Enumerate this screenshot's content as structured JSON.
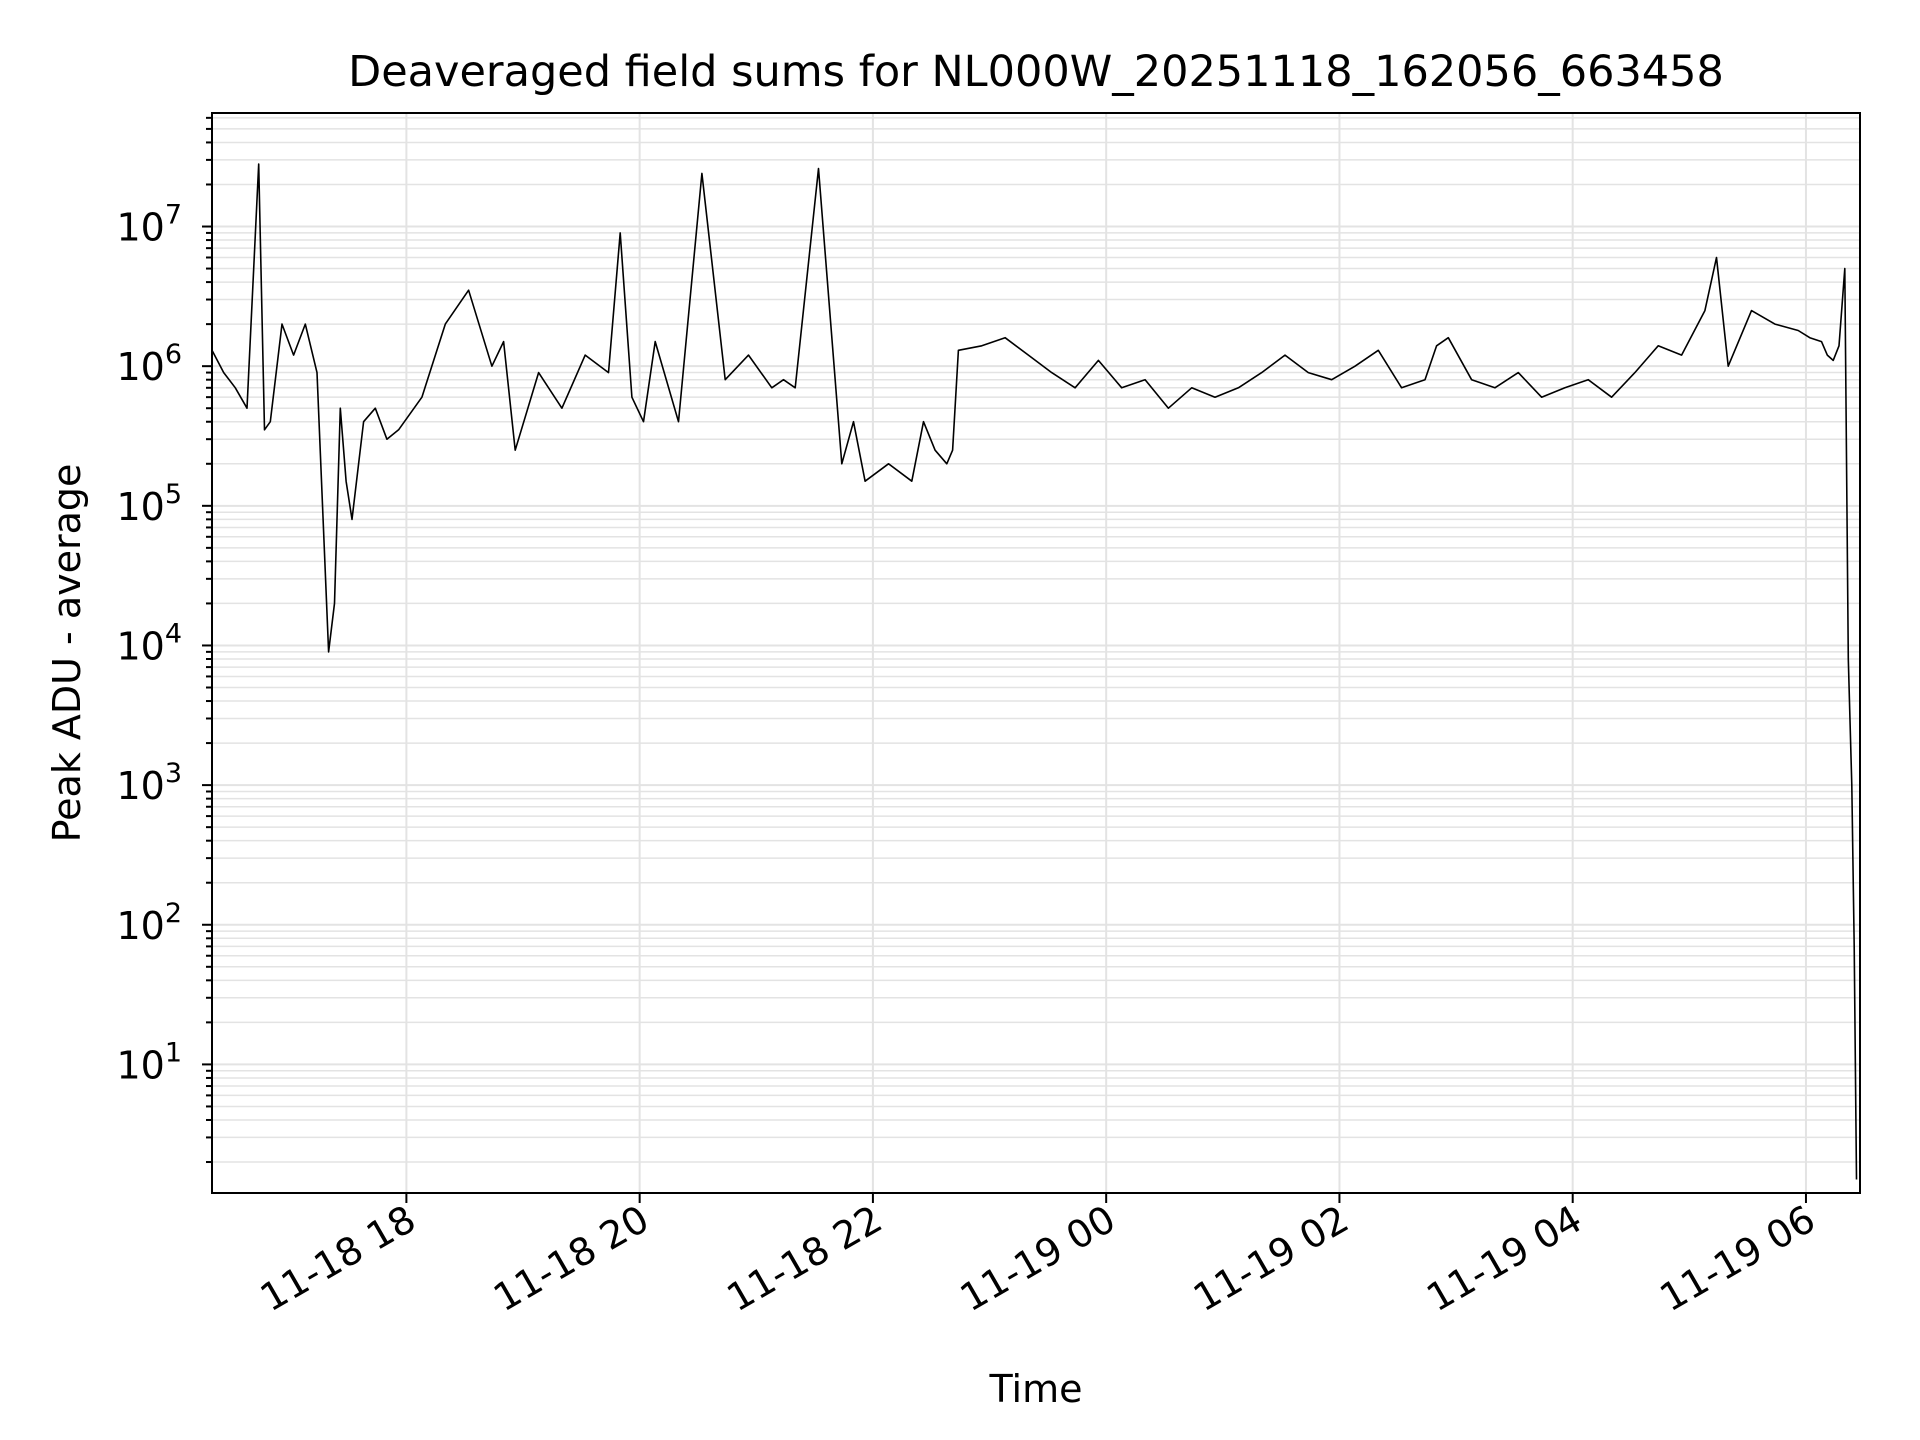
{
  "chart_data": {
    "type": "line",
    "title": "Deaveraged field sums for NL000W_20251118_162056_663458",
    "xlabel": "Time",
    "ylabel": "Peak ADU - average",
    "yscale": "log",
    "x_unit": "hours since 11-18 16:20",
    "xlim": [
      0.0,
      14.13
    ],
    "ylim": [
      1.2,
      65000000
    ],
    "grid": true,
    "x_ticks": [
      {
        "label": "11-18 18",
        "value": 1.6667
      },
      {
        "label": "11-18 20",
        "value": 3.6667
      },
      {
        "label": "11-18 22",
        "value": 5.6667
      },
      {
        "label": "11-19 00",
        "value": 7.6667
      },
      {
        "label": "11-19 02",
        "value": 9.6667
      },
      {
        "label": "11-19 04",
        "value": 11.6667
      },
      {
        "label": "11-19 06",
        "value": 13.6667
      }
    ],
    "y_ticks": [
      {
        "base": "10",
        "exp": "1",
        "value": 10
      },
      {
        "base": "10",
        "exp": "2",
        "value": 100
      },
      {
        "base": "10",
        "exp": "3",
        "value": 1000
      },
      {
        "base": "10",
        "exp": "4",
        "value": 10000
      },
      {
        "base": "10",
        "exp": "5",
        "value": 100000
      },
      {
        "base": "10",
        "exp": "6",
        "value": 1000000
      },
      {
        "base": "10",
        "exp": "7",
        "value": 10000000
      }
    ],
    "series": [
      {
        "name": "field sums",
        "color": "#000000",
        "x": [
          0.0,
          0.1,
          0.2,
          0.3,
          0.4,
          0.45,
          0.5,
          0.6,
          0.7,
          0.8,
          0.9,
          1.0,
          1.05,
          1.1,
          1.15,
          1.2,
          1.3,
          1.4,
          1.5,
          1.6,
          1.8,
          2.0,
          2.2,
          2.4,
          2.5,
          2.6,
          2.8,
          3.0,
          3.2,
          3.4,
          3.5,
          3.6,
          3.7,
          3.8,
          4.0,
          4.2,
          4.4,
          4.6,
          4.8,
          4.9,
          5.0,
          5.2,
          5.4,
          5.5,
          5.6,
          5.8,
          6.0,
          6.1,
          6.2,
          6.3,
          6.35,
          6.4,
          6.6,
          6.8,
          7.0,
          7.2,
          7.4,
          7.6,
          7.8,
          8.0,
          8.2,
          8.4,
          8.6,
          8.8,
          9.0,
          9.2,
          9.4,
          9.6,
          9.8,
          10.0,
          10.2,
          10.4,
          10.5,
          10.6,
          10.8,
          11.0,
          11.2,
          11.4,
          11.6,
          11.8,
          12.0,
          12.2,
          12.4,
          12.6,
          12.8,
          12.9,
          13.0,
          13.2,
          13.4,
          13.6,
          13.7,
          13.8,
          13.85,
          13.9,
          13.95,
          14.0,
          14.03,
          14.06,
          14.08,
          14.1
        ],
        "y": [
          1300000,
          900000,
          700000,
          500000,
          28000000,
          350000,
          400000,
          2000000,
          1200000,
          2000000,
          900000,
          9000,
          20000,
          500000,
          150000,
          80000,
          400000,
          500000,
          300000,
          350000,
          600000,
          2000000,
          3500000,
          1000000,
          1500000,
          250000,
          900000,
          500000,
          1200000,
          900000,
          9000000,
          600000,
          400000,
          1500000,
          400000,
          24000000,
          800000,
          1200000,
          700000,
          800000,
          700000,
          26000000,
          200000,
          400000,
          150000,
          200000,
          150000,
          400000,
          250000,
          200000,
          250000,
          1300000,
          1400000,
          1600000,
          1200000,
          900000,
          700000,
          1100000,
          700000,
          800000,
          500000,
          700000,
          600000,
          700000,
          900000,
          1200000,
          900000,
          800000,
          1000000,
          1300000,
          700000,
          800000,
          1400000,
          1600000,
          800000,
          700000,
          900000,
          600000,
          700000,
          800000,
          600000,
          900000,
          1400000,
          1200000,
          2500000,
          6000000,
          1000000,
          2500000,
          2000000,
          1800000,
          1600000,
          1500000,
          1200000,
          1100000,
          1400000,
          5000000,
          8000,
          1000,
          70,
          1.5
        ]
      }
    ]
  }
}
